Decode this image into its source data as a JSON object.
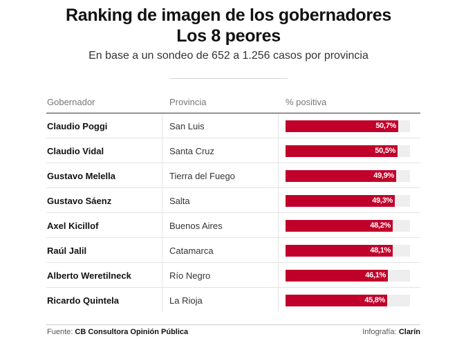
{
  "title_line1": "Ranking de imagen de los gobernadores",
  "title_line2": "Los 8 peores",
  "subtitle": "En base a un sondeo de 652 a 1.256 casos por provincia",
  "columns": {
    "governor": "Gobernador",
    "province": "Provincia",
    "positive": "% positiva"
  },
  "footer": {
    "source_label": "Fuente:",
    "source": "CB Consultora Opinión Pública",
    "credit_label": "Infografía:",
    "credit": "Clarín"
  },
  "colors": {
    "bar": "#c0002a",
    "track": "#eeeeee"
  },
  "chart_data": {
    "type": "bar",
    "title": "Ranking de imagen de los gobernadores",
    "subtitle": "Los 8 peores",
    "ylabel": "% positiva",
    "ylim": [
      0,
      100
    ],
    "categories": [
      "Claudio Poggi",
      "Claudio Vidal",
      "Gustavo Melella",
      "Gustavo Sáenz",
      "Axel Kicillof",
      "Raúl Jalil",
      "Alberto Weretilneck",
      "Ricardo Quintela"
    ],
    "provinces": [
      "San Luis",
      "Santa Cruz",
      "Tierra del Fuego",
      "Salta",
      "Buenos Aires",
      "Catamarca",
      "Río Negro",
      "La Rioja"
    ],
    "values": [
      50.7,
      50.5,
      49.9,
      49.3,
      48.2,
      48.1,
      46.1,
      45.8
    ],
    "value_labels": [
      "50,7%",
      "50,5%",
      "49,9%",
      "49,3%",
      "48,2%",
      "48,1%",
      "46,1%",
      "45,8%"
    ]
  }
}
